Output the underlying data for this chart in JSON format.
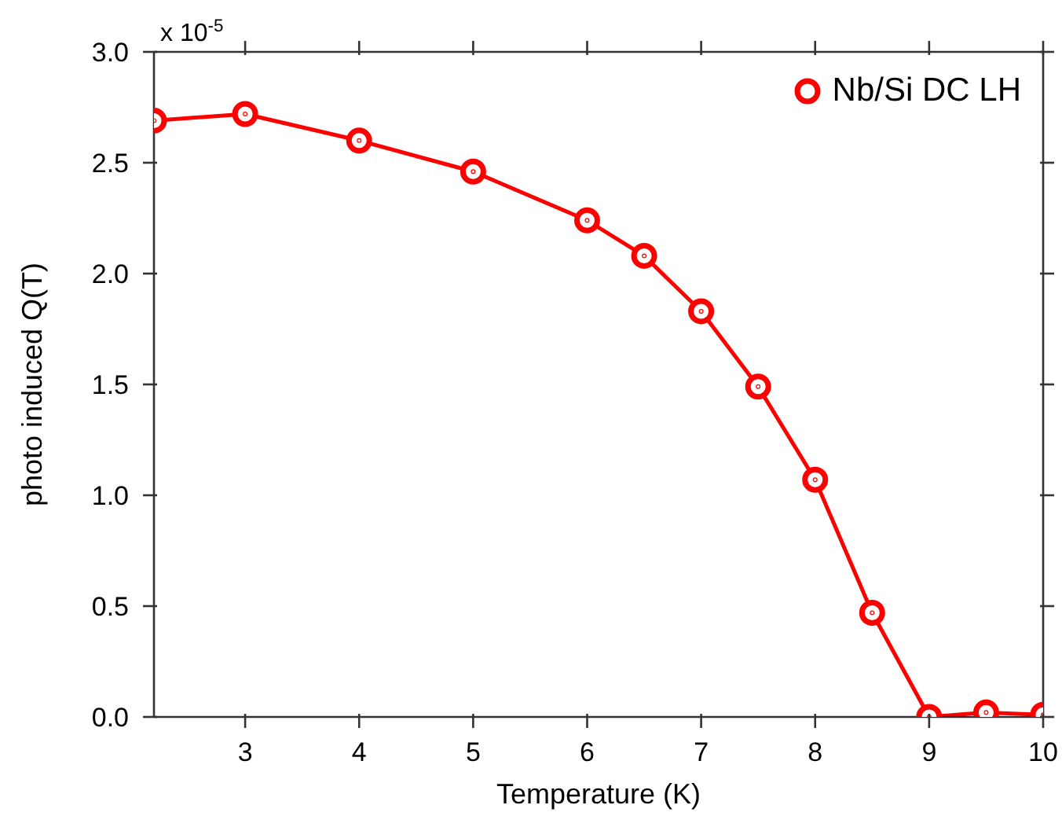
{
  "chart_data": {
    "type": "line",
    "xlabel": "Temperature (K)",
    "ylabel": "photo induced Q(T)",
    "x": [
      2.2,
      3,
      4,
      5,
      6,
      6.5,
      7,
      7.5,
      8,
      8.5,
      9,
      9.5,
      10
    ],
    "series": [
      {
        "name": "Nb/Si DC LH",
        "color": "#ff0000",
        "values": [
          2.69,
          2.72,
          2.6,
          2.46,
          2.24,
          2.08,
          1.83,
          1.49,
          1.07,
          0.47,
          0,
          0.02,
          0.01
        ]
      }
    ],
    "xlim": [
      2.2,
      10
    ],
    "xticks": [
      3,
      4,
      5,
      6,
      7,
      8,
      9,
      10
    ],
    "ylim": [
      0,
      3
    ],
    "yticks": [
      {
        "value": 0,
        "label": "0.0"
      },
      {
        "value": 0.5,
        "label": "0.5"
      },
      {
        "value": 1,
        "label": "1.0"
      },
      {
        "value": 1.5,
        "label": "1.5"
      },
      {
        "value": 2,
        "label": "2.0"
      },
      {
        "value": 2.5,
        "label": "2.5"
      },
      {
        "value": 3,
        "label": "3.0"
      }
    ],
    "annotations": [
      "x 10$^{-5}$"
    ],
    "legend": "top right",
    "marker": "circle",
    "line_style": "solid"
  }
}
